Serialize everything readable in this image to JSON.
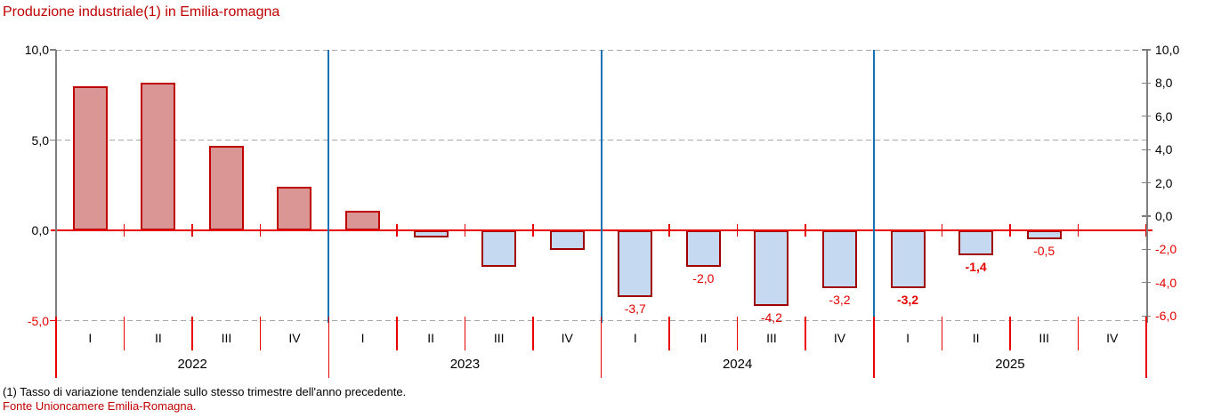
{
  "title": {
    "text": "Produzione industriale(1) in Emilia-romagna",
    "color": "#C00000"
  },
  "footer": {
    "note": "(1) Tasso di variazione tendenziale sullo stesso trimestre dell'anno precedente.",
    "note_color": "#000000",
    "source": "Fonte Unioncamere Emilia-Romagna.",
    "source_color": "#C00000"
  },
  "chart_data": {
    "type": "bar",
    "title": "Produzione industriale(1) in Emilia-romagna",
    "legend": "none",
    "grid": "horizontal dashed at 10.0, 5.0, -5.0; solid red line at 0.0; vertical blue separators between years",
    "years": [
      {
        "year": "2022",
        "quarters": [
          "I",
          "II",
          "III",
          "IV"
        ],
        "values": [
          8.0,
          8.2,
          4.7,
          2.4
        ],
        "labels": [
          null,
          null,
          null,
          null
        ]
      },
      {
        "year": "2023",
        "quarters": [
          "I",
          "II",
          "III",
          "IV"
        ],
        "values": [
          1.1,
          -0.4,
          -2.0,
          -1.1
        ],
        "labels": [
          null,
          null,
          null,
          null
        ]
      },
      {
        "year": "2024",
        "quarters": [
          "I",
          "II",
          "III",
          "IV"
        ],
        "values": [
          -3.7,
          -2.0,
          -4.2,
          -3.2
        ],
        "labels": [
          {
            "text": "-3,7",
            "bold": false
          },
          {
            "text": "-2,0",
            "bold": false
          },
          {
            "text": "-4,2",
            "bold": false
          },
          {
            "text": "-3,2",
            "bold": false
          }
        ]
      },
      {
        "year": "2025",
        "quarters": [
          "I",
          "II",
          "III",
          "IV"
        ],
        "values": [
          -3.2,
          -1.4,
          -0.5,
          null
        ],
        "labels": [
          {
            "text": "-3,2",
            "bold": true
          },
          {
            "text": "-1,4",
            "bold": true
          },
          {
            "text": "-0,5",
            "bold": false
          },
          null
        ]
      }
    ],
    "left_axis": {
      "tick_labels": [
        "10,0",
        "5,0",
        "0,0",
        "-5,0"
      ],
      "tick_values": [
        10,
        5,
        0,
        -5
      ],
      "max": 10,
      "min": -5.12
    },
    "right_axis": {
      "tick_labels": [
        "10,0",
        "8,0",
        "6,0",
        "4,0",
        "2,0",
        "0,0",
        "-2,0",
        "-4,0",
        "-6,0"
      ],
      "tick_values": [
        10,
        8,
        6,
        4,
        2,
        0,
        -2,
        -4,
        -6
      ],
      "max": 10,
      "min": -6.42
    },
    "colors": {
      "positive_fill": "#D99694",
      "positive_border": "#C00000",
      "negative_fill": "#C5D9F1",
      "negative_border": "#A00000",
      "zero_line": "#E80000",
      "red_tick": "#E80000",
      "gridline": "#A6A6A6",
      "year_separator": "#1673B1",
      "axis_line": "#7F7F7F",
      "red_text": "#E40000",
      "black_text": "#000000"
    }
  }
}
